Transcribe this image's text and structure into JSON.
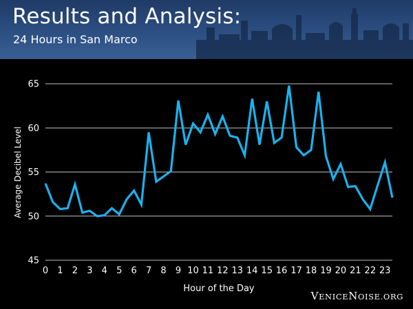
{
  "header": {
    "title": "Results and Analysis:",
    "subtitle": "24 Hours in San Marco"
  },
  "brand": {
    "first_initial": "V",
    "first_rest": "ENICE",
    "second_initial": "N",
    "second_rest": "OISE",
    "suffix": ".ORG"
  },
  "colors": {
    "line": "#1ab2ee",
    "gridline": "#ffffff",
    "text": "#ffffff",
    "background": "#000000",
    "banner": "#2c4f82"
  },
  "chart_data": {
    "type": "line",
    "xlabel": "Hour of the Day",
    "ylabel": "Average Decibel Level",
    "xlim": [
      0,
      23.5
    ],
    "ylim": [
      45,
      65
    ],
    "x_ticks": [
      0,
      1,
      2,
      3,
      4,
      5,
      6,
      7,
      8,
      9,
      10,
      11,
      12,
      13,
      14,
      15,
      16,
      17,
      18,
      19,
      20,
      21,
      22,
      23
    ],
    "y_ticks": [
      45,
      50,
      55,
      60,
      65
    ],
    "grid": "horizontal",
    "series": [
      {
        "x": [
          0,
          0.5,
          1,
          1.5,
          2,
          2.5,
          3,
          3.5,
          4,
          4.5,
          5,
          5.5,
          6,
          6.5,
          7,
          7.5,
          8,
          8.5,
          9,
          9.5,
          10,
          10.5,
          11,
          11.5,
          12,
          12.5,
          13,
          13.5,
          14,
          14.5,
          15,
          15.5,
          16,
          16.5,
          17,
          17.5,
          18,
          18.5,
          19,
          19.5,
          20,
          20.5,
          21,
          21.5,
          22,
          22.5,
          23,
          23.5
        ],
        "values": [
          53.7,
          51.6,
          50.8,
          50.9,
          53.6,
          50.4,
          50.6,
          50.0,
          50.1,
          50.9,
          50.2,
          51.9,
          52.9,
          51.3,
          59.5,
          53.9,
          54.5,
          55.1,
          63.1,
          58.1,
          60.5,
          59.5,
          61.5,
          59.3,
          61.3,
          59.1,
          58.9,
          56.9,
          63.3,
          58.1,
          63.0,
          58.3,
          58.9,
          64.8,
          57.8,
          56.9,
          57.5,
          64.1,
          56.8,
          54.2,
          55.9,
          53.3,
          53.4,
          51.9,
          50.8,
          53.5,
          56.1,
          52.1
        ]
      }
    ]
  }
}
